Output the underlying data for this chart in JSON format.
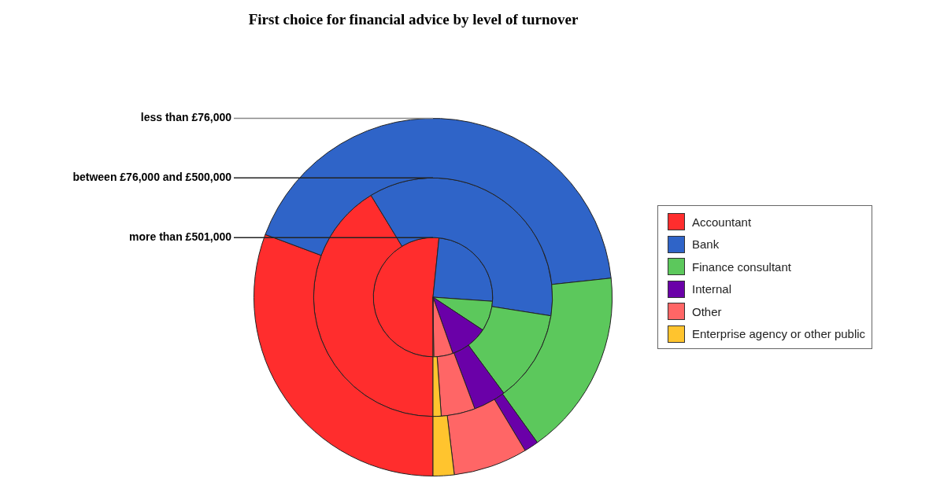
{
  "chart_data": {
    "type": "pie",
    "title": "First choice for financial advice by level of turnover",
    "categories": [
      "Accountant",
      "Bank",
      "Finance consultant",
      "Internal",
      "Other",
      "Enterprise agency or other public"
    ],
    "colors": [
      "#ff2d2d",
      "#2f64c8",
      "#5cc85c",
      "#6a00a8",
      "#ff6666",
      "#ffc42e"
    ],
    "series": [
      {
        "name": "less than £76,000",
        "values": [
          30.7,
          42.6,
          16.8,
          1.3,
          6.7,
          1.9
        ]
      },
      {
        "name": "between £76,000 and £500,000",
        "values": [
          41.3,
          36.2,
          12.4,
          4.4,
          4.6,
          1.1
        ]
      },
      {
        "name": "more than £501,000",
        "values": [
          51.6,
          24.5,
          8.2,
          10.3,
          5.2,
          0.2
        ]
      }
    ],
    "legend": "right"
  }
}
